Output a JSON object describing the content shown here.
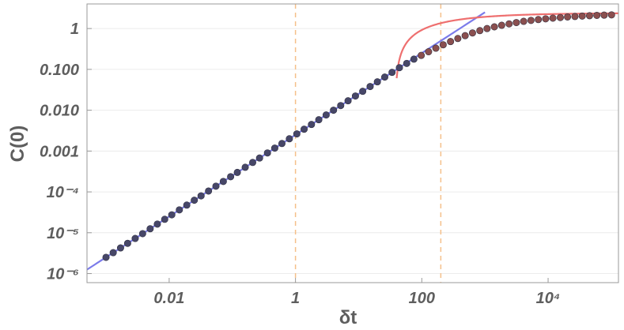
{
  "chart_data": {
    "type": "scatter",
    "title": "",
    "xlabel": "δt",
    "ylabel": "C(0)",
    "x_scale": "log",
    "y_scale": "log",
    "xlim": [
      0.0005,
      130000
    ],
    "ylim": [
      6e-07,
      4
    ],
    "grid": "horizontal",
    "x_ticks": [
      {
        "value": 0.01,
        "label": "0.01"
      },
      {
        "value": 1,
        "label": "1"
      },
      {
        "value": 100,
        "label": "100"
      },
      {
        "value": 10000,
        "label": "10⁴"
      }
    ],
    "y_ticks": [
      {
        "value": 1e-06,
        "label": "10⁻⁶"
      },
      {
        "value": 1e-05,
        "label": "10⁻⁵"
      },
      {
        "value": 0.0001,
        "label": "10⁻⁴"
      },
      {
        "value": 0.001,
        "label": "0.001"
      },
      {
        "value": 0.01,
        "label": "0.010"
      },
      {
        "value": 0.1,
        "label": "0.100"
      },
      {
        "value": 1,
        "label": "1"
      }
    ],
    "vertical_lines": [
      {
        "x": 1,
        "color": "#f5c08a",
        "style": "dashed"
      },
      {
        "x": 200,
        "color": "#f5c08a",
        "style": "dashed"
      }
    ],
    "fit_lines": [
      {
        "kind": "power_law",
        "color": "#7b7bea",
        "x_range": [
          0.0005,
          1000
        ],
        "a": 0.0025,
        "b": 1.0
      },
      {
        "kind": "saturation",
        "color": "#ee6f6f",
        "x_range": [
          40,
          130000
        ],
        "cmax": 2.4,
        "x0": 38
      }
    ],
    "scatter_series": [
      {
        "color": "#474768",
        "points": [
          [
            0.001,
            2.5e-06
          ],
          [
            0.0013,
            3.25e-06
          ],
          [
            0.0017,
            4.25e-06
          ],
          [
            0.0022,
            5.5e-06
          ],
          [
            0.0029,
            7.25e-06
          ],
          [
            0.0038,
            9.5e-06
          ],
          [
            0.005,
            1.25e-05
          ],
          [
            0.0065,
            1.63e-05
          ],
          [
            0.0085,
            2.13e-05
          ],
          [
            0.011,
            2.75e-05
          ],
          [
            0.0145,
            3.63e-05
          ],
          [
            0.019,
            4.75e-05
          ],
          [
            0.025,
            6.25e-05
          ],
          [
            0.032,
            8e-05
          ],
          [
            0.042,
            0.000105
          ],
          [
            0.055,
            0.000138
          ],
          [
            0.072,
            0.00018
          ],
          [
            0.094,
            0.000235
          ],
          [
            0.12,
            0.0003
          ],
          [
            0.16,
            0.0004
          ],
          [
            0.21,
            0.000525
          ],
          [
            0.27,
            0.000675
          ],
          [
            0.36,
            0.0009
          ],
          [
            0.47,
            0.00118
          ],
          [
            0.61,
            0.00153
          ],
          [
            0.8,
            0.002
          ],
          [
            1.05,
            0.00263
          ],
          [
            1.37,
            0.00343
          ],
          [
            1.79,
            0.00448
          ],
          [
            2.34,
            0.00585
          ],
          [
            3.06,
            0.00765
          ],
          [
            4,
            0.01
          ],
          [
            5.2,
            0.013
          ],
          [
            6.8,
            0.017
          ],
          [
            8.9,
            0.0223
          ],
          [
            11.6,
            0.029
          ],
          [
            15.2,
            0.038
          ],
          [
            19.8,
            0.0495
          ],
          [
            25.9,
            0.0648
          ],
          [
            33.8,
            0.0845
          ],
          [
            44.2,
            0.11
          ],
          [
            57.7,
            0.14
          ],
          [
            75,
            0.178
          ]
        ]
      },
      {
        "color": "#8a4f4f",
        "points": [
          [
            98,
            0.22
          ],
          [
            128,
            0.27
          ],
          [
            167,
            0.33
          ],
          [
            218,
            0.4
          ],
          [
            285,
            0.48
          ],
          [
            372,
            0.57
          ],
          [
            486,
            0.67
          ],
          [
            635,
            0.78
          ],
          [
            830,
            0.89
          ],
          [
            1080,
            1.0
          ],
          [
            1410,
            1.1
          ],
          [
            1840,
            1.2
          ],
          [
            2410,
            1.3
          ],
          [
            3140,
            1.4
          ],
          [
            4100,
            1.5
          ],
          [
            5360,
            1.58
          ],
          [
            7000,
            1.66
          ],
          [
            9140,
            1.73
          ],
          [
            11900,
            1.8
          ],
          [
            15600,
            1.86
          ],
          [
            20300,
            1.92
          ],
          [
            26600,
            1.97
          ],
          [
            34700,
            2.02
          ],
          [
            45300,
            2.06
          ],
          [
            59100,
            2.1
          ],
          [
            77200,
            2.13
          ],
          [
            101000,
            2.16
          ]
        ]
      }
    ]
  }
}
